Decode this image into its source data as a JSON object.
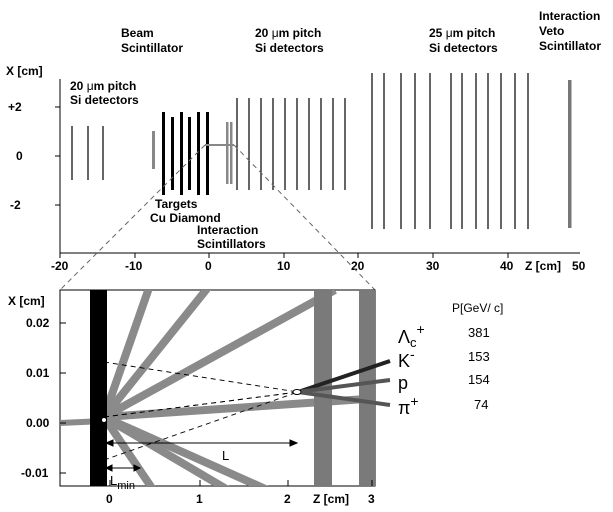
{
  "top": {
    "x_axis_label": "X [cm]",
    "y_ticks": [
      "+2",
      "0",
      "-2"
    ],
    "x_ticks": [
      "-20",
      "-10",
      "0",
      "10",
      "20",
      "30",
      "40"
    ],
    "z_label": "Z [cm]",
    "z_end": "50",
    "labels": {
      "beam_l1": "Beam",
      "beam_l2": "Scintillator",
      "si20a_l1_pre": "20 ",
      "si20a_l1_mu": "μ",
      "si20a_l1_post": "m pitch",
      "si20a_l2": "Si detectors",
      "si20b_l1_pre": "20 ",
      "si20b_l1_mu": "μ",
      "si20b_l1_post": "m pitch",
      "si20b_l2": "Si detectors",
      "si25_l1_pre": "25 ",
      "si25_l1_mu": "μ",
      "si25_l1_post": "m pitch",
      "si25_l2": "Si detectors",
      "veto_l1": "Interaction",
      "veto_l2": "Veto",
      "veto_l3": "Scintillator",
      "targets": "Targets",
      "cu_diamond": "Cu  Diamond",
      "int_l1": "Interaction",
      "int_l2": "Scintillators"
    }
  },
  "bottom": {
    "x_axis_label": "X [cm]",
    "y_ticks": [
      "0.02",
      "0.01",
      "0.00",
      "-0.01"
    ],
    "x_ticks": [
      "0",
      "1",
      "2",
      "3"
    ],
    "z_label": "Z [cm]",
    "L_label": "L",
    "Lmin_label": "L",
    "Lmin_sub": "min"
  },
  "particles": {
    "header": "P[GeV/ c]",
    "rows": [
      {
        "symbol": "Λ",
        "sub": "c",
        "sup": "+",
        "momentum": "381"
      },
      {
        "symbol": "K",
        "sub": "",
        "sup": "-",
        "momentum": "153"
      },
      {
        "symbol": "p",
        "sub": "",
        "sup": "",
        "momentum": "154"
      },
      {
        "symbol": "π",
        "sub": "",
        "sup": "+",
        "momentum": "74"
      }
    ]
  }
}
